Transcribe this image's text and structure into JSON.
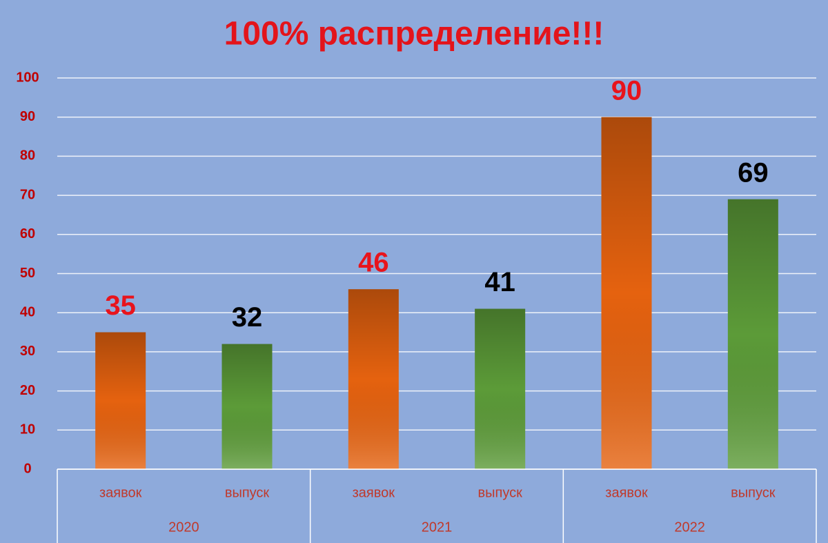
{
  "chart_data": {
    "type": "bar",
    "title": "100% распределение!!!",
    "categories": [
      "заявок",
      "выпуск",
      "заявок",
      "выпуск",
      "заявок",
      "выпуск"
    ],
    "groups": [
      "2020",
      "2021",
      "2022"
    ],
    "values": [
      35,
      32,
      46,
      41,
      90,
      69
    ],
    "colors": [
      "#e5620f",
      "#5c9b38",
      "#e5620f",
      "#5c9b38",
      "#e5620f",
      "#5c9b38"
    ],
    "label_colors": [
      "#e8141c",
      "#000000",
      "#e8141c",
      "#000000",
      "#e8141c",
      "#000000"
    ],
    "ylim": [
      0,
      100
    ],
    "yticks": [
      0,
      10,
      20,
      30,
      40,
      50,
      60,
      70,
      80,
      90,
      100
    ],
    "grid": true
  }
}
